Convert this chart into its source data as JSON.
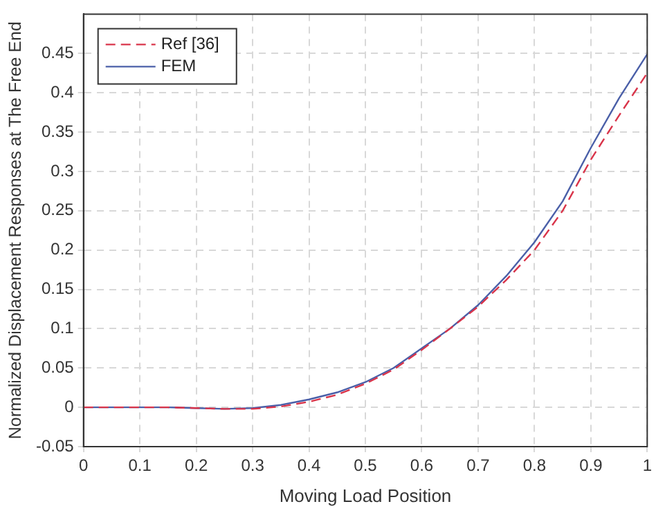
{
  "chart_data": {
    "type": "line",
    "xlabel": "Moving Load Position",
    "ylabel": "Normalized Displacement Responses at The Free End",
    "x": [
      0,
      0.1,
      0.15,
      0.2,
      0.25,
      0.3,
      0.35,
      0.4,
      0.45,
      0.5,
      0.55,
      0.6,
      0.65,
      0.7,
      0.75,
      0.8,
      0.85,
      0.9,
      0.95,
      1
    ],
    "series": [
      {
        "name": "Ref [36]",
        "color": "#d9344a",
        "line_style": "dashed",
        "values": [
          0,
          0,
          0,
          -0.001,
          -0.002,
          -0.002,
          0.001,
          0.007,
          0.016,
          0.03,
          0.048,
          0.073,
          0.1,
          0.128,
          0.162,
          0.2,
          0.25,
          0.315,
          0.371,
          0.425
        ]
      },
      {
        "name": "FEM",
        "color": "#4a5fa8",
        "line_style": "solid",
        "values": [
          0,
          0,
          0,
          -0.001,
          -0.002,
          -0.001,
          0.003,
          0.01,
          0.019,
          0.032,
          0.05,
          0.075,
          0.1,
          0.13,
          0.167,
          0.21,
          0.262,
          0.33,
          0.393,
          0.449
        ]
      }
    ],
    "xlim": [
      0,
      1
    ],
    "xticks": [
      0,
      0.1,
      0.2,
      0.3,
      0.4,
      0.5,
      0.6,
      0.7,
      0.8,
      0.9,
      1
    ],
    "ylim": [
      -0.05,
      0.5
    ],
    "yticks": [
      -0.05,
      0,
      0.05,
      0.1,
      0.15,
      0.2,
      0.25,
      0.3,
      0.35,
      0.4,
      0.45
    ],
    "grid": true,
    "legend": "top left",
    "marker": "none"
  }
}
